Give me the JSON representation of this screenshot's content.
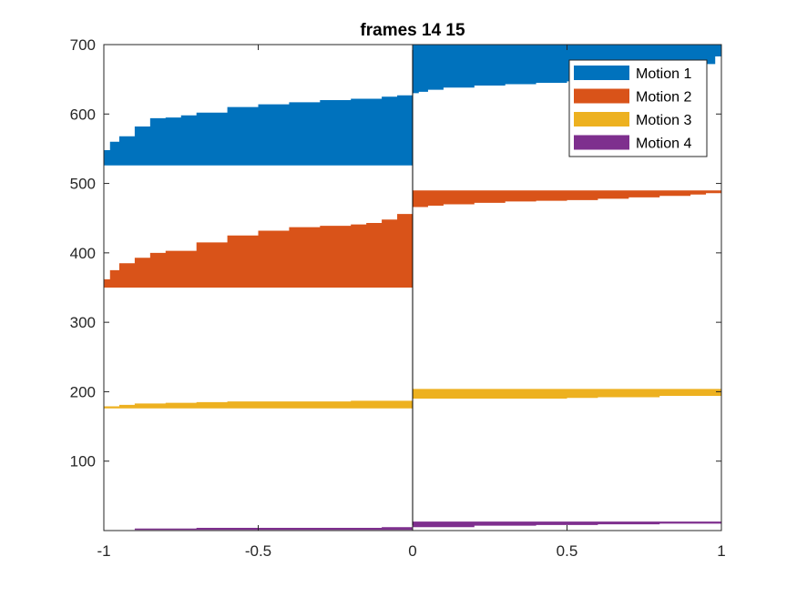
{
  "chart_data": {
    "type": "area",
    "title": "frames 14 15",
    "xlabel": "",
    "ylabel": "",
    "xlim": [
      -1,
      1
    ],
    "ylim": [
      0,
      700
    ],
    "x_ticks": [
      {
        "value": -1,
        "label": "-1"
      },
      {
        "value": -0.5,
        "label": "-0.5"
      },
      {
        "value": 0,
        "label": "0"
      },
      {
        "value": 0.5,
        "label": "0.5"
      },
      {
        "value": 1,
        "label": "1"
      }
    ],
    "y_ticks": [
      {
        "value": 100,
        "label": "100"
      },
      {
        "value": 200,
        "label": "200"
      },
      {
        "value": 300,
        "label": "300"
      },
      {
        "value": 400,
        "label": "400"
      },
      {
        "value": 500,
        "label": "500"
      },
      {
        "value": 600,
        "label": "600"
      },
      {
        "value": 700,
        "label": "700"
      }
    ],
    "legend_position": "top-right",
    "grid": false,
    "series": [
      {
        "name": "Motion 1",
        "color": "#0072BD",
        "left": {
          "base": 526,
          "x": [
            -1,
            -0.98,
            -0.95,
            -0.9,
            -0.85,
            -0.8,
            -0.75,
            -0.7,
            -0.6,
            -0.5,
            -0.4,
            -0.3,
            -0.2,
            -0.1,
            -0.05,
            0
          ],
          "top": [
            548,
            560,
            568,
            582,
            594,
            595,
            598,
            602,
            610,
            614,
            617,
            620,
            622,
            625,
            627,
            628
          ]
        },
        "right": {
          "top": 700,
          "x": [
            0,
            0.02,
            0.05,
            0.1,
            0.2,
            0.3,
            0.4,
            0.5,
            0.6,
            0.7,
            0.8,
            0.9,
            0.95,
            0.98,
            1
          ],
          "bottom": [
            630,
            632,
            635,
            638,
            641,
            643,
            645,
            647,
            650,
            655,
            661,
            666,
            672,
            683,
            695
          ]
        }
      },
      {
        "name": "Motion 2",
        "color": "#D95319",
        "left": {
          "base": 350,
          "x": [
            -1,
            -0.98,
            -0.95,
            -0.9,
            -0.85,
            -0.8,
            -0.7,
            -0.6,
            -0.5,
            -0.4,
            -0.3,
            -0.2,
            -0.15,
            -0.1,
            -0.05,
            0
          ],
          "top": [
            362,
            375,
            385,
            393,
            400,
            403,
            415,
            425,
            432,
            437,
            439,
            441,
            443,
            448,
            456,
            466
          ]
        },
        "right": {
          "top": 490,
          "x": [
            0,
            0.05,
            0.1,
            0.2,
            0.3,
            0.4,
            0.5,
            0.6,
            0.7,
            0.8,
            0.9,
            0.95,
            1
          ],
          "bottom": [
            466,
            468,
            470,
            472,
            474,
            475,
            476,
            478,
            480,
            482,
            484,
            486,
            489
          ]
        }
      },
      {
        "name": "Motion 3",
        "color": "#EDB120",
        "left": {
          "base": 176,
          "x": [
            -1,
            -0.95,
            -0.9,
            -0.8,
            -0.7,
            -0.6,
            -0.4,
            -0.2,
            0
          ],
          "top": [
            179,
            181,
            183,
            184,
            185,
            186,
            186,
            187,
            188
          ]
        },
        "right": {
          "top": 204,
          "x": [
            0,
            0.2,
            0.4,
            0.5,
            0.6,
            0.8,
            1
          ],
          "bottom": [
            190,
            190,
            190,
            191,
            192,
            194,
            198
          ]
        }
      },
      {
        "name": "Motion 4",
        "color": "#7E2F8E",
        "left": {
          "base": 1,
          "x": [
            -1,
            -0.9,
            -0.7,
            -0.5,
            -0.3,
            -0.1,
            0
          ],
          "top": [
            1,
            3,
            4,
            4,
            4,
            5,
            5
          ]
        },
        "right": {
          "top": 13,
          "x": [
            0,
            0.2,
            0.4,
            0.6,
            0.8,
            1
          ],
          "bottom": [
            5,
            7,
            8,
            9,
            10,
            11
          ]
        }
      }
    ]
  }
}
